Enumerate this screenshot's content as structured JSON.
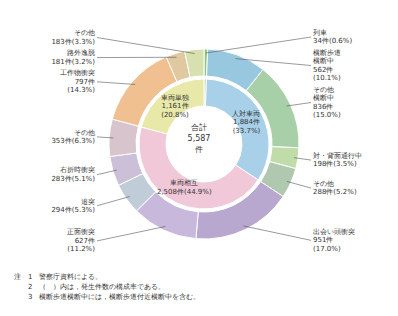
{
  "chart_data": {
    "type": "pie",
    "data_labels": true,
    "center_label": "合計\n5,587\n件",
    "series": [
      {
        "values": [
          34,
          1884,
          2508,
          1161
        ],
        "colors": [
          "#b8dca8",
          "#a8d0e8",
          "#f0c8d8",
          "#e8e8a8"
        ],
        "value_labels": [
          null,
          "人対車両\n1,884件\n(33.7%)",
          "車両相互\n2,508件(44.9%)",
          "車両単独\n1,161件\n(20.8%)"
        ]
      },
      {
        "values": [
          34,
          562,
          836,
          198,
          288,
          951,
          627,
          294,
          283,
          353,
          797,
          181,
          183
        ],
        "colors": [
          "#88c878",
          "#98c8e0",
          "#a8d0a8",
          "#c0dca8",
          "#b0c8b0",
          "#b8a8d0",
          "#c8b8dc",
          "#c0ccd8",
          "#ccc0d8",
          "#d8c4cc",
          "#f0c090",
          "#e0c8a0",
          "#d8e0b0"
        ],
        "value_labels": [
          "列車\n34件(0.6%)",
          "横断歩道\n横断中\n562件\n(10.1%)",
          "その他\n横断中\n836件\n(15.0%)",
          "対・背面通行中\n198件(3.5%)",
          "その他\n288件(5.2%)",
          "出会い頭衝突\n951件\n(17.0%)",
          "正面衝突\n627件\n(11.2%)",
          "追突\n294件(5.3%)",
          "右折時衝突\n283件(5.1%)",
          "その他\n353件(6.3%)",
          "工作物衝突\n797件\n(14.3%)",
          "路外逸脱\n181件(3.2%)",
          "その他\n183件(3.3%)"
        ]
      }
    ],
    "annotations": [
      "注　1　警察庁資料による。",
      "　　2　（　）内は，発生件数の構成率である。",
      "　　3　横断歩道横断中には，横断歩道付近横断中を含む。"
    ]
  }
}
